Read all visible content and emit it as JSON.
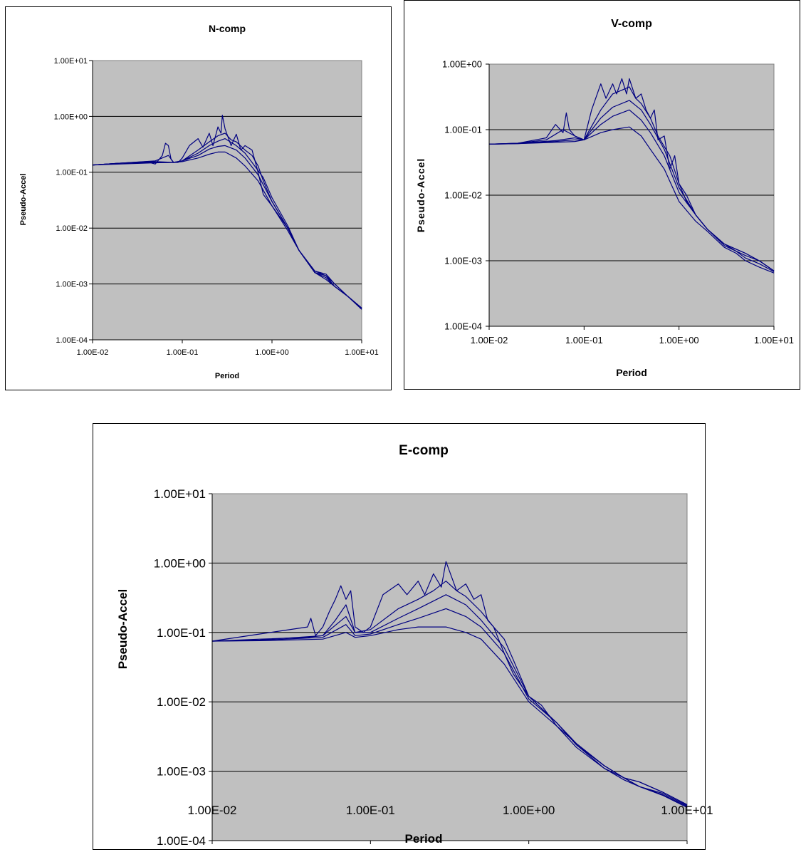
{
  "line_color": "#000080",
  "plot_background": "#c0c0c0",
  "chart_data": [
    {
      "id": "n",
      "type": "line",
      "title": "N-comp",
      "xlabel": "Period",
      "ylabel": "Pseudo-Accel",
      "xscale": "log",
      "yscale": "log",
      "xlim": [
        0.01,
        10
      ],
      "ylim": [
        0.0001,
        10
      ],
      "x_ticks": [
        "1.00E-02",
        "1.00E-01",
        "1.00E+00",
        "1.00E+01"
      ],
      "y_ticks": [
        "1.00E-04",
        "1.00E-03",
        "1.00E-02",
        "1.00E-01",
        "1.00E+00",
        "1.00E+01"
      ],
      "grid": "horizontal",
      "legend": "none",
      "series": [
        {
          "x": [
            0.01,
            0.02,
            0.04,
            0.05,
            0.06,
            0.065,
            0.07,
            0.075,
            0.08,
            0.09,
            0.1,
            0.12,
            0.15,
            0.17,
            0.2,
            0.22,
            0.25,
            0.27,
            0.28,
            0.3,
            0.35,
            0.4,
            0.45,
            0.5,
            0.6,
            0.7,
            0.8,
            1,
            1.5,
            2,
            3,
            4,
            5,
            7,
            10
          ],
          "y": [
            0.135,
            0.145,
            0.155,
            0.14,
            0.2,
            0.33,
            0.3,
            0.17,
            0.15,
            0.15,
            0.18,
            0.3,
            0.4,
            0.28,
            0.5,
            0.3,
            0.65,
            0.5,
            1.05,
            0.6,
            0.3,
            0.48,
            0.25,
            0.3,
            0.25,
            0.1,
            0.04,
            0.025,
            0.01,
            0.004,
            0.0017,
            0.0014,
            0.0009,
            0.0006,
            0.00035
          ]
        },
        {
          "x": [
            0.01,
            0.02,
            0.05,
            0.07,
            0.08,
            0.1,
            0.15,
            0.2,
            0.25,
            0.3,
            0.35,
            0.4,
            0.5,
            0.6,
            0.7,
            0.8,
            1,
            1.5,
            2,
            3,
            4,
            5,
            7,
            10
          ],
          "y": [
            0.135,
            0.145,
            0.16,
            0.2,
            0.15,
            0.16,
            0.25,
            0.35,
            0.45,
            0.5,
            0.38,
            0.35,
            0.25,
            0.2,
            0.13,
            0.07,
            0.03,
            0.01,
            0.004,
            0.0017,
            0.0015,
            0.001,
            0.0006,
            0.00037
          ]
        },
        {
          "x": [
            0.01,
            0.02,
            0.05,
            0.08,
            0.1,
            0.15,
            0.2,
            0.25,
            0.3,
            0.4,
            0.5,
            0.6,
            0.8,
            1,
            1.5,
            2,
            3,
            4,
            5,
            7,
            10
          ],
          "y": [
            0.135,
            0.145,
            0.155,
            0.15,
            0.16,
            0.22,
            0.3,
            0.36,
            0.4,
            0.3,
            0.22,
            0.15,
            0.08,
            0.035,
            0.011,
            0.004,
            0.0016,
            0.0014,
            0.001,
            0.0006,
            0.00037
          ]
        },
        {
          "x": [
            0.01,
            0.02,
            0.05,
            0.08,
            0.1,
            0.15,
            0.2,
            0.25,
            0.3,
            0.4,
            0.5,
            0.7,
            1,
            1.5,
            2,
            3,
            4,
            5,
            7,
            10
          ],
          "y": [
            0.135,
            0.145,
            0.15,
            0.15,
            0.16,
            0.2,
            0.26,
            0.29,
            0.3,
            0.25,
            0.18,
            0.09,
            0.03,
            0.01,
            0.004,
            0.0016,
            0.0013,
            0.0009,
            0.0006,
            0.00037
          ]
        },
        {
          "x": [
            0.01,
            0.02,
            0.05,
            0.08,
            0.1,
            0.15,
            0.2,
            0.25,
            0.3,
            0.4,
            0.5,
            0.7,
            1,
            1.5,
            2,
            3,
            4,
            5,
            7,
            10
          ],
          "y": [
            0.135,
            0.14,
            0.148,
            0.15,
            0.155,
            0.18,
            0.21,
            0.23,
            0.23,
            0.18,
            0.13,
            0.07,
            0.025,
            0.009,
            0.004,
            0.0016,
            0.0012,
            0.0009,
            0.0006,
            0.00036
          ]
        }
      ]
    },
    {
      "id": "v",
      "type": "line",
      "title": "V-comp",
      "xlabel": "Period",
      "ylabel": "Pseudo-Accel",
      "xscale": "log",
      "yscale": "log",
      "xlim": [
        0.01,
        10
      ],
      "ylim": [
        0.0001,
        1
      ],
      "x_ticks": [
        "1.00E-02",
        "1.00E-01",
        "1.00E+00",
        "1.00E+01"
      ],
      "y_ticks": [
        "1.00E-04",
        "1.00E-03",
        "1.00E-02",
        "1.00E-01",
        "1.00E+00"
      ],
      "grid": "horizontal",
      "legend": "none",
      "series": [
        {
          "x": [
            0.01,
            0.02,
            0.04,
            0.05,
            0.06,
            0.065,
            0.07,
            0.08,
            0.1,
            0.12,
            0.15,
            0.17,
            0.2,
            0.22,
            0.25,
            0.28,
            0.3,
            0.35,
            0.4,
            0.45,
            0.5,
            0.55,
            0.6,
            0.7,
            0.8,
            0.9,
            1,
            1.2,
            1.5,
            2,
            3,
            4,
            5,
            7,
            10
          ],
          "y": [
            0.06,
            0.062,
            0.075,
            0.12,
            0.09,
            0.18,
            0.1,
            0.08,
            0.07,
            0.2,
            0.5,
            0.3,
            0.5,
            0.35,
            0.6,
            0.35,
            0.6,
            0.3,
            0.35,
            0.2,
            0.15,
            0.2,
            0.07,
            0.08,
            0.025,
            0.04,
            0.015,
            0.008,
            0.005,
            0.003,
            0.0018,
            0.0015,
            0.0013,
            0.001,
            0.0007
          ]
        },
        {
          "x": [
            0.01,
            0.02,
            0.04,
            0.06,
            0.08,
            0.1,
            0.15,
            0.2,
            0.25,
            0.3,
            0.35,
            0.4,
            0.5,
            0.6,
            0.8,
            1,
            1.2,
            1.5,
            2,
            3,
            4,
            5,
            7,
            10
          ],
          "y": [
            0.06,
            0.062,
            0.07,
            0.1,
            0.08,
            0.07,
            0.2,
            0.35,
            0.4,
            0.45,
            0.3,
            0.25,
            0.15,
            0.08,
            0.04,
            0.015,
            0.01,
            0.005,
            0.003,
            0.0018,
            0.0015,
            0.0013,
            0.001,
            0.0007
          ]
        },
        {
          "x": [
            0.01,
            0.02,
            0.05,
            0.08,
            0.1,
            0.15,
            0.2,
            0.3,
            0.4,
            0.5,
            0.7,
            1,
            1.5,
            2,
            3,
            4,
            5,
            7,
            10
          ],
          "y": [
            0.06,
            0.062,
            0.068,
            0.075,
            0.07,
            0.15,
            0.22,
            0.28,
            0.2,
            0.12,
            0.05,
            0.013,
            0.005,
            0.003,
            0.0018,
            0.0014,
            0.0012,
            0.001,
            0.0007
          ]
        },
        {
          "x": [
            0.01,
            0.02,
            0.05,
            0.08,
            0.1,
            0.15,
            0.2,
            0.3,
            0.4,
            0.5,
            0.7,
            1,
            1.5,
            2,
            3,
            4,
            5,
            7,
            10
          ],
          "y": [
            0.06,
            0.061,
            0.066,
            0.07,
            0.07,
            0.12,
            0.16,
            0.2,
            0.14,
            0.09,
            0.04,
            0.011,
            0.005,
            0.003,
            0.0017,
            0.0014,
            0.0011,
            0.0009,
            0.00068
          ]
        },
        {
          "x": [
            0.01,
            0.02,
            0.05,
            0.08,
            0.1,
            0.15,
            0.2,
            0.3,
            0.4,
            0.5,
            0.7,
            1,
            1.5,
            2,
            3,
            4,
            5,
            7,
            10
          ],
          "y": [
            0.06,
            0.061,
            0.064,
            0.066,
            0.07,
            0.09,
            0.1,
            0.11,
            0.08,
            0.05,
            0.025,
            0.008,
            0.004,
            0.0028,
            0.0016,
            0.0013,
            0.001,
            0.0008,
            0.00065
          ]
        }
      ]
    },
    {
      "id": "e",
      "type": "line",
      "title": "E-comp",
      "xlabel": "Period",
      "ylabel": "Pseudo-Accel",
      "xscale": "log",
      "yscale": "log",
      "xlim": [
        0.01,
        10
      ],
      "ylim": [
        0.0001,
        10
      ],
      "x_ticks": [
        "1.00E-02",
        "1.00E-01",
        "1.00E+00",
        "1.00E+01"
      ],
      "y_ticks": [
        "1.00E-04",
        "1.00E-03",
        "1.00E-02",
        "1.00E-01",
        "1.00E+00",
        "1.00E+01"
      ],
      "grid": "horizontal",
      "legend": "none",
      "series": [
        {
          "x": [
            0.01,
            0.02,
            0.04,
            0.042,
            0.045,
            0.05,
            0.055,
            0.06,
            0.065,
            0.07,
            0.075,
            0.08,
            0.09,
            0.1,
            0.12,
            0.15,
            0.17,
            0.2,
            0.22,
            0.25,
            0.28,
            0.3,
            0.35,
            0.4,
            0.45,
            0.5,
            0.55,
            0.6,
            0.7,
            0.8,
            1,
            1.2,
            1.5,
            2,
            3,
            4,
            5,
            7,
            10
          ],
          "y": [
            0.075,
            0.095,
            0.12,
            0.16,
            0.09,
            0.12,
            0.2,
            0.3,
            0.47,
            0.3,
            0.4,
            0.12,
            0.1,
            0.12,
            0.35,
            0.5,
            0.35,
            0.55,
            0.35,
            0.7,
            0.45,
            1.05,
            0.4,
            0.5,
            0.3,
            0.35,
            0.15,
            0.12,
            0.05,
            0.025,
            0.012,
            0.009,
            0.0045,
            0.0025,
            0.0012,
            0.0008,
            0.0007,
            0.0005,
            0.00033
          ]
        },
        {
          "x": [
            0.01,
            0.02,
            0.04,
            0.05,
            0.06,
            0.07,
            0.08,
            0.1,
            0.15,
            0.2,
            0.25,
            0.3,
            0.35,
            0.4,
            0.5,
            0.6,
            0.7,
            0.8,
            1,
            1.5,
            2,
            3,
            4,
            5,
            7,
            10
          ],
          "y": [
            0.075,
            0.08,
            0.085,
            0.09,
            0.15,
            0.25,
            0.1,
            0.11,
            0.22,
            0.3,
            0.4,
            0.55,
            0.4,
            0.33,
            0.2,
            0.12,
            0.08,
            0.04,
            0.012,
            0.005,
            0.0025,
            0.0012,
            0.0008,
            0.0007,
            0.0005,
            0.00033
          ]
        },
        {
          "x": [
            0.01,
            0.02,
            0.05,
            0.07,
            0.08,
            0.1,
            0.15,
            0.2,
            0.3,
            0.4,
            0.5,
            0.7,
            1,
            1.5,
            2,
            3,
            4,
            5,
            7,
            10
          ],
          "y": [
            0.075,
            0.078,
            0.09,
            0.17,
            0.1,
            0.1,
            0.16,
            0.22,
            0.35,
            0.25,
            0.15,
            0.06,
            0.012,
            0.005,
            0.0024,
            0.0012,
            0.0008,
            0.0006,
            0.00048,
            0.00032
          ]
        },
        {
          "x": [
            0.01,
            0.02,
            0.05,
            0.07,
            0.08,
            0.1,
            0.15,
            0.2,
            0.3,
            0.4,
            0.5,
            0.7,
            1,
            1.5,
            2,
            3,
            4,
            5,
            7,
            10
          ],
          "y": [
            0.075,
            0.077,
            0.085,
            0.13,
            0.09,
            0.095,
            0.13,
            0.16,
            0.22,
            0.17,
            0.12,
            0.05,
            0.011,
            0.005,
            0.0024,
            0.0011,
            0.0008,
            0.0006,
            0.00046,
            0.00031
          ]
        },
        {
          "x": [
            0.01,
            0.02,
            0.05,
            0.07,
            0.08,
            0.1,
            0.15,
            0.2,
            0.3,
            0.4,
            0.5,
            0.7,
            1,
            1.5,
            2,
            3,
            4,
            5,
            7,
            10
          ],
          "y": [
            0.075,
            0.076,
            0.08,
            0.1,
            0.085,
            0.09,
            0.11,
            0.12,
            0.12,
            0.1,
            0.08,
            0.035,
            0.01,
            0.0045,
            0.0022,
            0.0011,
            0.00075,
            0.0006,
            0.00045,
            0.0003
          ]
        }
      ]
    }
  ]
}
